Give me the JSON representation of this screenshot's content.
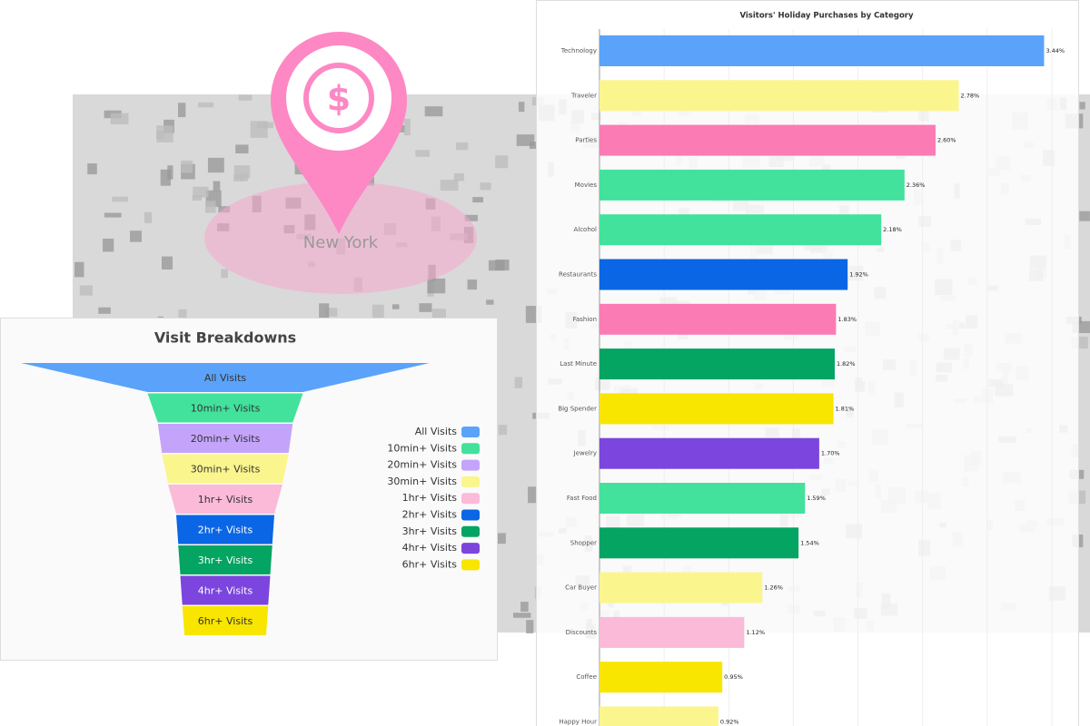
{
  "map": {
    "label": "New York"
  },
  "chart_data": [
    {
      "type": "funnel",
      "title": "Visit Breakdowns",
      "categories": [
        "All Visits",
        "10min+ Visits",
        "20min+ Visits",
        "30min+ Visits",
        "1hr+ Visits",
        "2hr+ Visits",
        "3hr+ Visits",
        "4hr+ Visits",
        "6hr+ Visits"
      ],
      "values": [
        100,
        38,
        33,
        31,
        28,
        24,
        23,
        22,
        21
      ],
      "colors": [
        "#5ba3fa",
        "#42e29c",
        "#c4a4fb",
        "#fbf58e",
        "#fbbad8",
        "#0a66e4",
        "#04a462",
        "#7b45de",
        "#f8e500"
      ],
      "legend": "right"
    },
    {
      "type": "bar",
      "orientation": "horizontal",
      "title": "Visitors' Holiday Purchases by Category",
      "categories": [
        "Technology",
        "Traveler",
        "Parties",
        "Movies",
        "Alcohol",
        "Restaurants",
        "Fashion",
        "Last Minute",
        "Big Spender",
        "Jewelry",
        "Fast Food",
        "Shopper",
        "Car Buyer",
        "Discounts",
        "Coffee",
        "Happy Hour"
      ],
      "values": [
        3.44,
        2.78,
        2.6,
        2.36,
        2.18,
        1.92,
        1.83,
        1.82,
        1.81,
        1.7,
        1.59,
        1.54,
        1.26,
        1.12,
        0.95,
        0.92
      ],
      "value_labels": [
        "3.44%",
        "2.78%",
        "2.60%",
        "2.36%",
        "2.18%",
        "1.92%",
        "1.83%",
        "1.82%",
        "1.81%",
        "1.70%",
        "1.59%",
        "1.54%",
        "1.26%",
        "1.12%",
        "0.95%",
        "0.92%"
      ],
      "colors": [
        "#5ba3fa",
        "#fbf58e",
        "#fb7bb4",
        "#42e29c",
        "#42e29c",
        "#0a66e4",
        "#fb7bb4",
        "#04a462",
        "#f8e500",
        "#7b45de",
        "#42e29c",
        "#04a462",
        "#fbf58e",
        "#fbbad8",
        "#f8e500",
        "#fbf58e"
      ],
      "xlim": [
        0,
        3.5
      ],
      "grid": true
    }
  ]
}
